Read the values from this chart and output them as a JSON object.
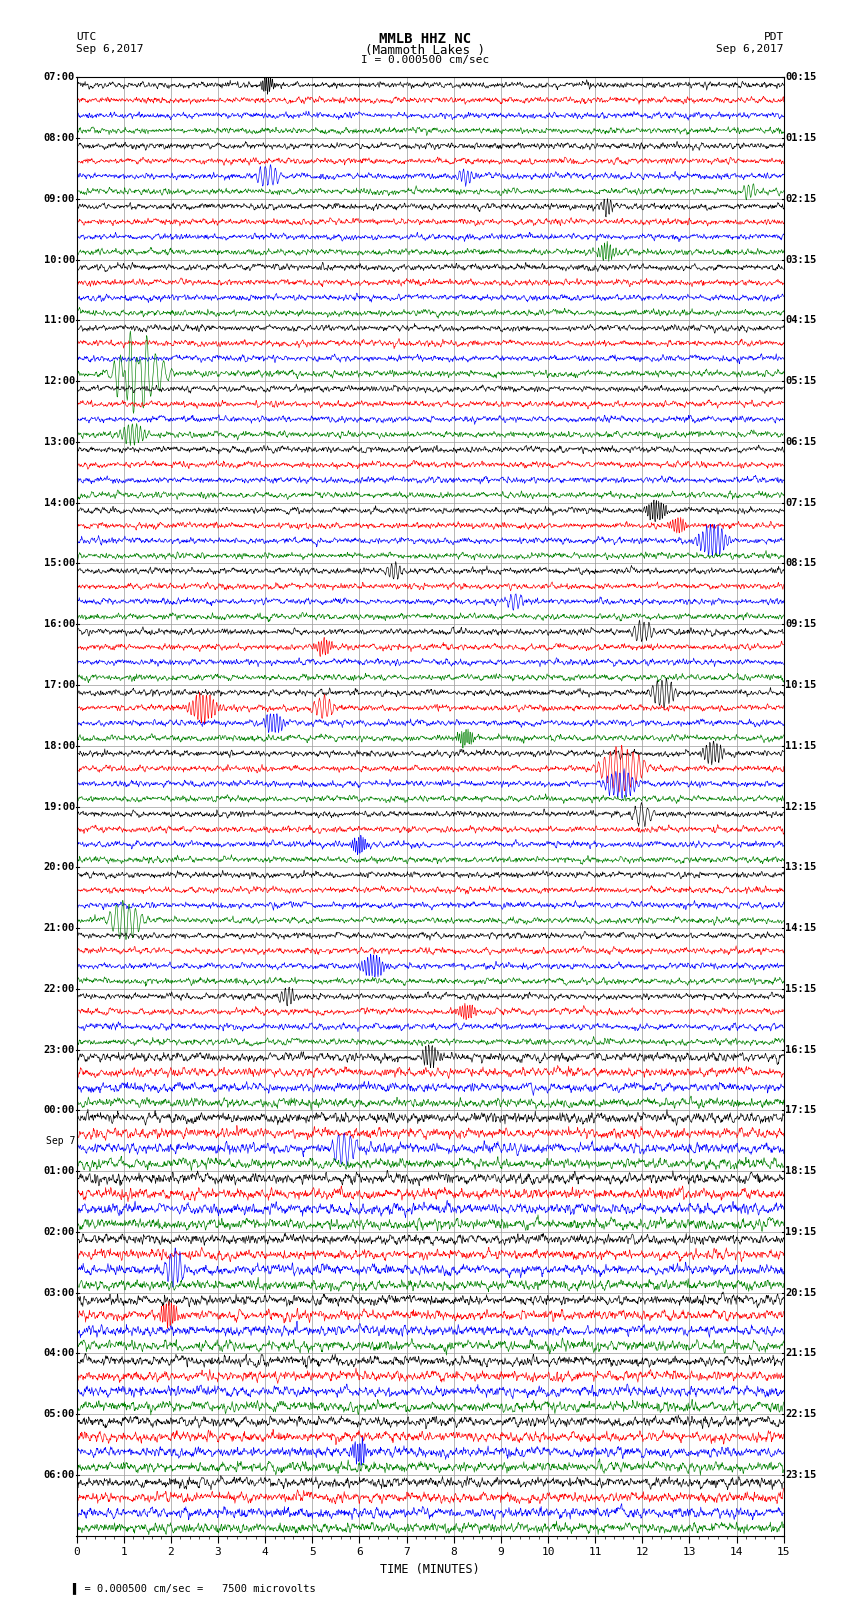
{
  "title_line1": "MMLB HHZ NC",
  "title_line2": "(Mammoth Lakes )",
  "title_line3": "I = 0.000500 cm/sec",
  "left_header1": "UTC",
  "left_header2": "Sep 6,2017",
  "right_header1": "PDT",
  "right_header2": "Sep 6,2017",
  "xlabel": "TIME (MINUTES)",
  "bottom_note": "= 0.000500 cm/sec =   7500 microvolts",
  "utc_labels": [
    "07:00",
    "08:00",
    "09:00",
    "10:00",
    "11:00",
    "12:00",
    "13:00",
    "14:00",
    "15:00",
    "16:00",
    "17:00",
    "18:00",
    "19:00",
    "20:00",
    "21:00",
    "22:00",
    "23:00",
    "00:00",
    "01:00",
    "02:00",
    "03:00",
    "04:00",
    "05:00",
    "06:00"
  ],
  "pdt_labels": [
    "00:15",
    "01:15",
    "02:15",
    "03:15",
    "04:15",
    "05:15",
    "06:15",
    "07:15",
    "08:15",
    "09:15",
    "10:15",
    "11:15",
    "12:15",
    "13:15",
    "14:15",
    "15:15",
    "16:15",
    "17:15",
    "18:15",
    "19:15",
    "20:15",
    "21:15",
    "22:15",
    "23:15"
  ],
  "sep7_row": 17,
  "num_rows": 24,
  "traces_per_row": 4,
  "trace_colors": [
    "black",
    "red",
    "blue",
    "green"
  ],
  "bg_color": "#ffffff",
  "grid_color": "#999999",
  "fig_width": 8.5,
  "fig_height": 16.13,
  "dpi": 100,
  "noise_amplitude": 0.25,
  "noise_amplitude_rows": [
    0.18,
    0.18,
    0.18,
    0.18,
    0.18,
    0.18,
    0.18,
    0.18,
    0.18,
    0.18,
    0.18,
    0.18,
    0.18,
    0.18,
    0.18,
    0.18,
    0.25,
    0.28,
    0.3,
    0.28,
    0.28,
    0.28,
    0.28,
    0.28
  ]
}
